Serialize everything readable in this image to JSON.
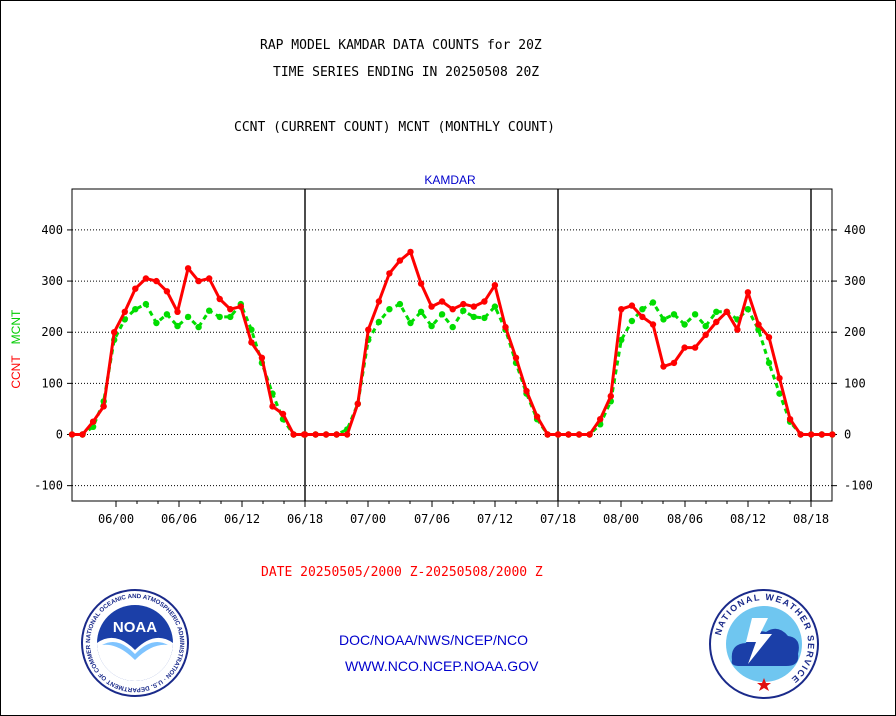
{
  "header": {
    "title_line1": "RAP MODEL KAMDAR DATA COUNTS for 20Z",
    "title_line2": "TIME SERIES ENDING IN 20250508 20Z",
    "subtitle": "CCNT (CURRENT COUNT) MCNT (MONTHLY COUNT)"
  },
  "chart_data": {
    "type": "line",
    "title": "KAMDAR",
    "ylabel_ccnt": "CCNT",
    "ylabel_mcnt": "MCNT",
    "ylim": [
      -130,
      480
    ],
    "yticks": [
      -100,
      0,
      100,
      200,
      300,
      400
    ],
    "ytick_labels": [
      "-100",
      "0",
      "100",
      "200",
      "300",
      "400"
    ],
    "xticks": [
      "06/00",
      "06/06",
      "06/12",
      "06/18",
      "07/00",
      "07/06",
      "07/12",
      "07/18",
      "08/00",
      "08/06",
      "08/12",
      "08/18"
    ],
    "grid": true,
    "colors": {
      "ccnt": "#ff0000",
      "mcnt": "#00dd00",
      "axis": "#000000",
      "title": "#0000cc"
    },
    "series": [
      {
        "name": "CCNT",
        "values": [
          0,
          0,
          25,
          55,
          200,
          240,
          285,
          305,
          300,
          280,
          240,
          325,
          300,
          305,
          265,
          245,
          250,
          180,
          150,
          55,
          40,
          0,
          0,
          0,
          0,
          0,
          0,
          0,
          60,
          205,
          260,
          315,
          340,
          357,
          295,
          250,
          260,
          245,
          255,
          250,
          260,
          292,
          210,
          150,
          85,
          35,
          0,
          0,
          0,
          0,
          0,
          0,
          30,
          75,
          245,
          252,
          230,
          215,
          133,
          140,
          170,
          170,
          195,
          220,
          240,
          205,
          278,
          215,
          190,
          110,
          30,
          0,
          0,
          0,
          0
        ]
      },
      {
        "name": "MCNT",
        "values": [
          0,
          0,
          15,
          65,
          185,
          225,
          245,
          255,
          218,
          235,
          212,
          230,
          210,
          242,
          230,
          230,
          255,
          205,
          140,
          80,
          30,
          0,
          0,
          0,
          0,
          0,
          0,
          10,
          60,
          185,
          220,
          245,
          255,
          218,
          240,
          212,
          235,
          210,
          242,
          230,
          228,
          250,
          205,
          140,
          80,
          30,
          0,
          0,
          0,
          0,
          0,
          0,
          20,
          65,
          185,
          222,
          245,
          258,
          225,
          235,
          215,
          235,
          212,
          240,
          240,
          225,
          245,
          205,
          140,
          80,
          25,
          0,
          0,
          0,
          0
        ]
      }
    ]
  },
  "footer": {
    "date_range": "DATE 20250505/2000 Z-20250508/2000 Z",
    "org_path": "DOC/NOAA/NWS/NCEP/NCO",
    "website": "WWW.NCO.NCEP.NOAA.GOV"
  },
  "logos": {
    "noaa_text": "NOAA",
    "noaa_ring": "NATIONAL OCEANIC AND ATMOSPHERIC ADMINISTRATION · U.S. DEPARTMENT OF COMMERCE ·",
    "nws_ring": "NATIONAL WEATHER SERVICE"
  }
}
